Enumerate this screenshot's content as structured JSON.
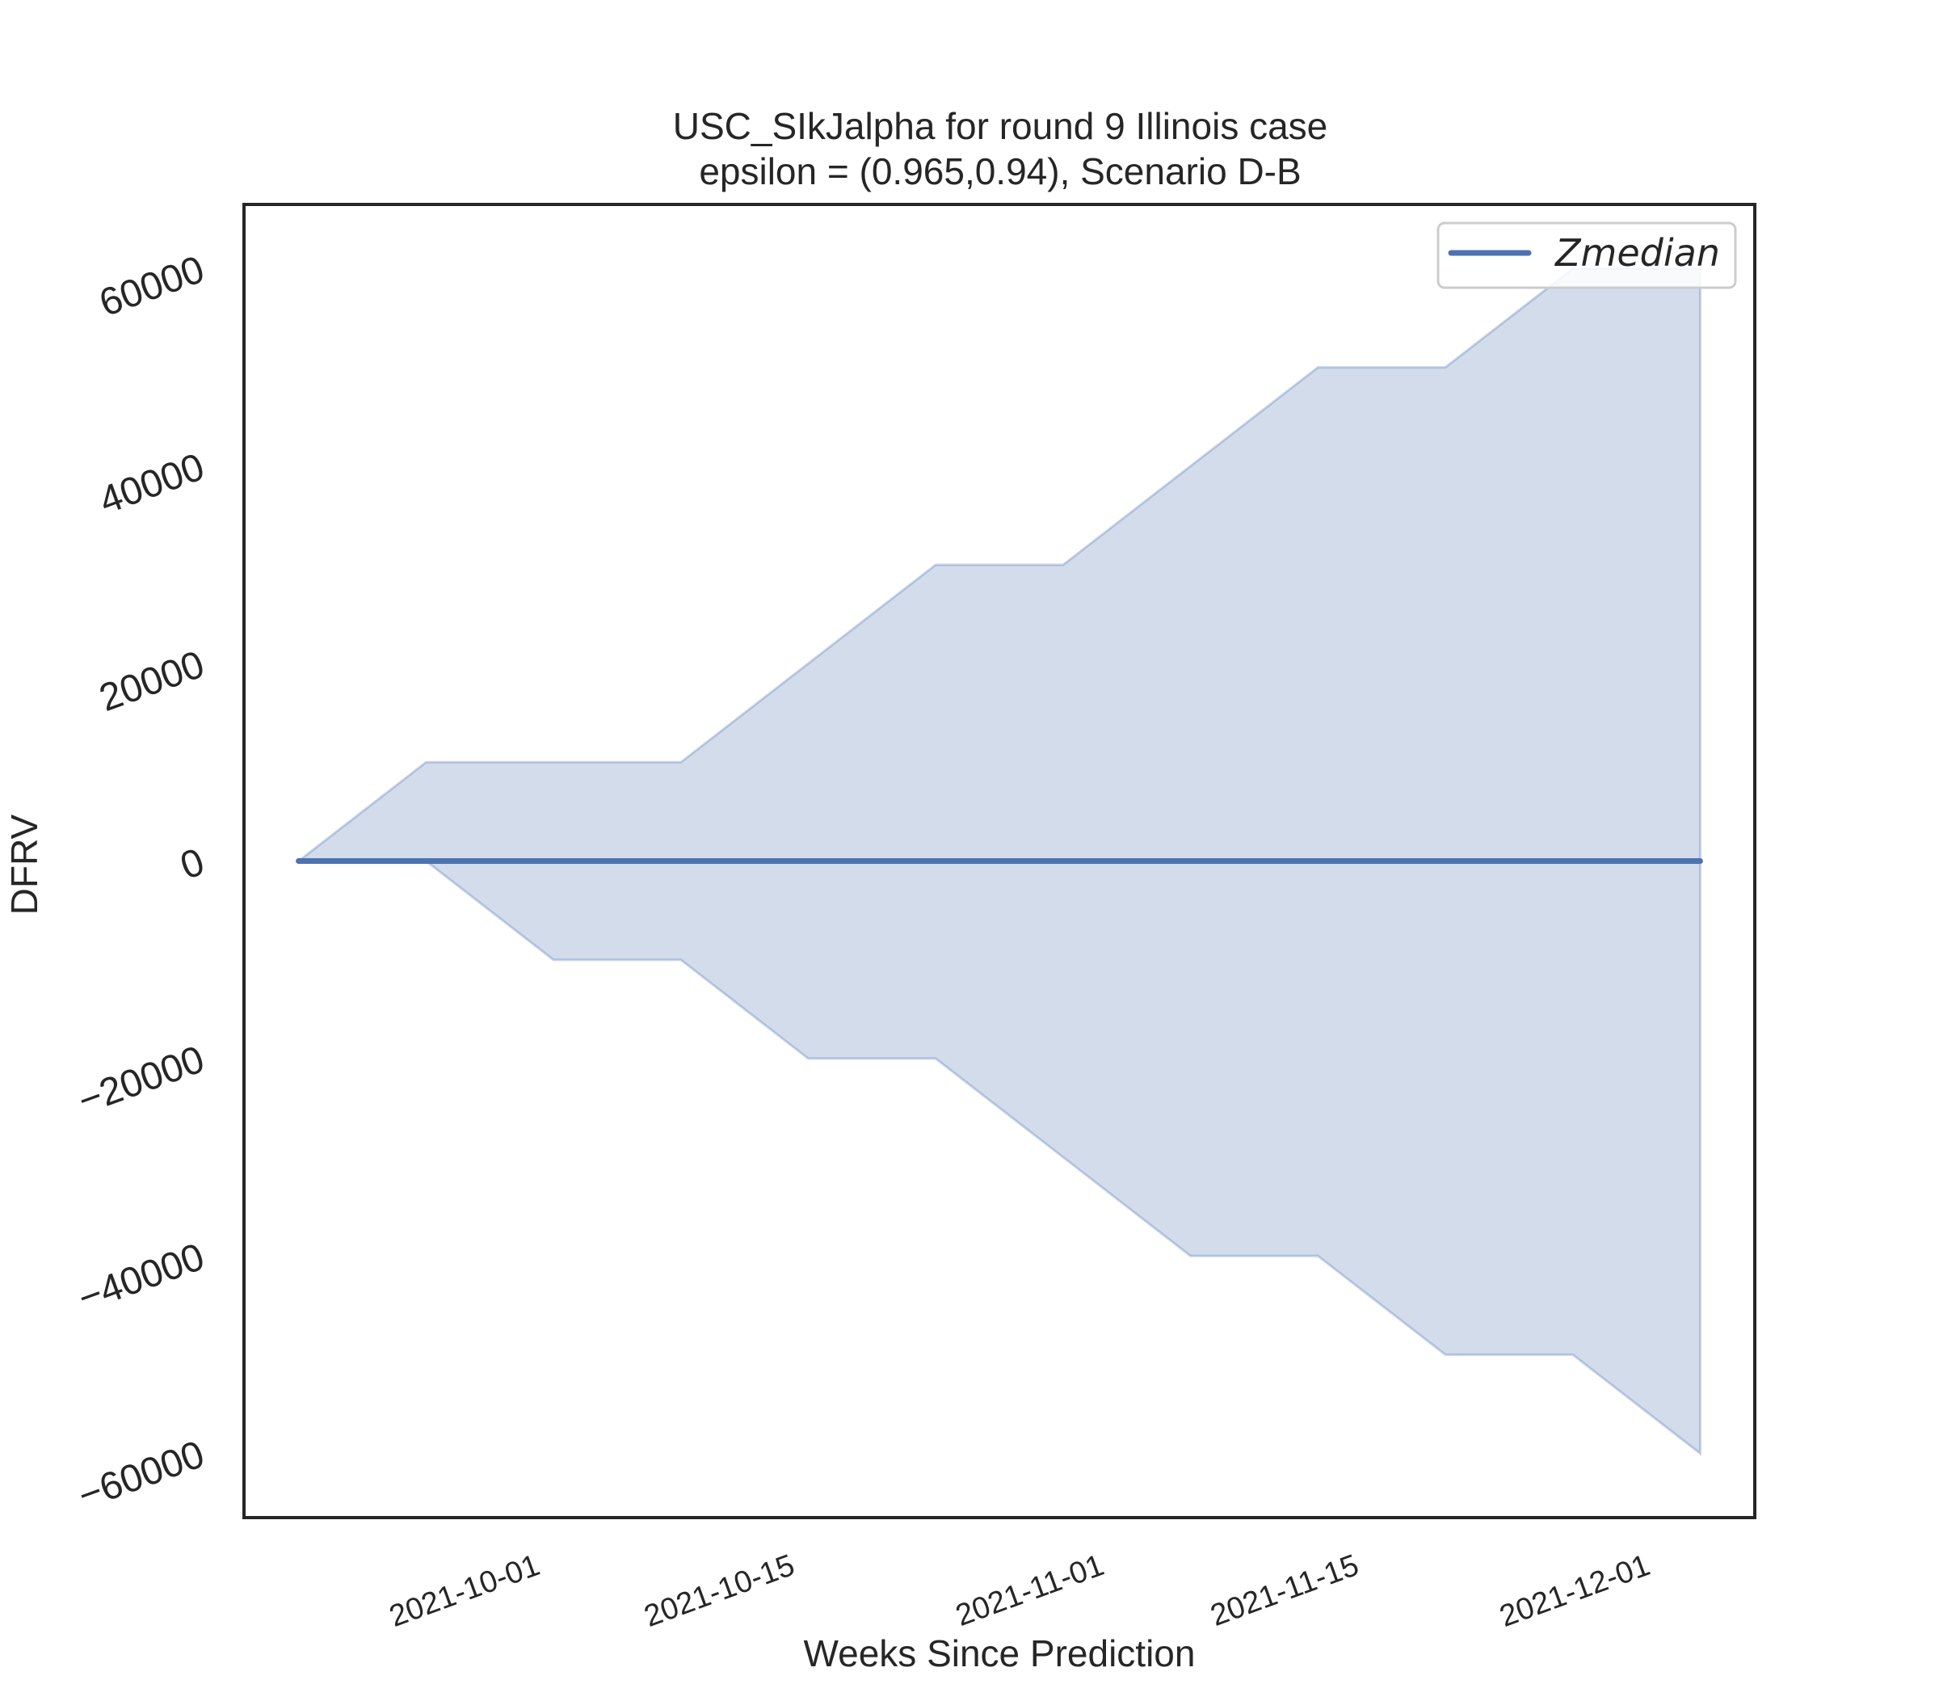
{
  "chart_data": {
    "type": "area",
    "title": "USC_SIkJalpha for round 9 Illinois  case",
    "subtitle": "epsilon = (0.965,0.94), Scenario D-B",
    "xlabel": "Weeks Since Prediction",
    "ylabel": "DFRV",
    "x": [
      "2021-09-18",
      "2021-09-25",
      "2021-10-02",
      "2021-10-09",
      "2021-10-16",
      "2021-10-23",
      "2021-10-30",
      "2021-11-06",
      "2021-11-13",
      "2021-11-20",
      "2021-11-27",
      "2021-12-04"
    ],
    "series": [
      {
        "name": "Zmedian",
        "role": "line",
        "color": "#4c72b0",
        "values": [
          0,
          0,
          0,
          0,
          0,
          0,
          0,
          0,
          0,
          0,
          0,
          0
        ]
      },
      {
        "role": "band_upper",
        "color": "#4c72b0",
        "values": [
          0,
          10000,
          10000,
          10000,
          20000,
          30000,
          30000,
          40000,
          50000,
          50000,
          60000,
          60000
        ]
      },
      {
        "role": "band_lower",
        "color": "#4c72b0",
        "values": [
          0,
          0,
          -10000,
          -10000,
          -20000,
          -20000,
          -30000,
          -40000,
          -40000,
          -50000,
          -50000,
          -60000
        ]
      }
    ],
    "xticks": [
      "2021-10-01",
      "2021-10-15",
      "2021-11-01",
      "2021-11-15",
      "2021-12-01"
    ],
    "yticks": [
      -60000,
      -40000,
      -20000,
      0,
      20000,
      40000,
      60000
    ],
    "xlim": [
      "2021-09-15",
      "2021-12-07"
    ],
    "ylim": [
      -66500,
      66500
    ],
    "grid": false,
    "legend": "top-right",
    "band_color": "#4c72b0"
  }
}
